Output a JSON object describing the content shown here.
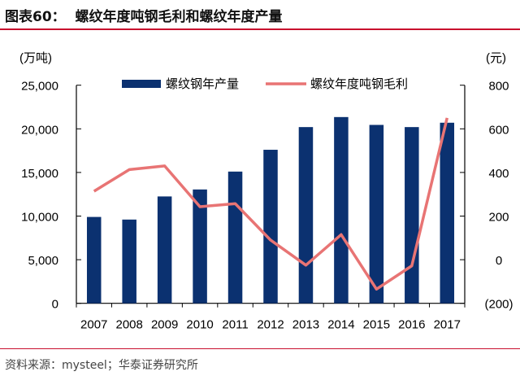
{
  "title": "图表60：  螺纹年度吨钢毛利和螺纹年度产量",
  "source": "资料来源：mysteel；华泰证券研究所",
  "colors": {
    "bar": "#0b3170",
    "line": "#e87474"
  },
  "chart_data": {
    "type": "bar+line",
    "categories": [
      "2007",
      "2008",
      "2009",
      "2010",
      "2011",
      "2012",
      "2013",
      "2014",
      "2015",
      "2016",
      "2017"
    ],
    "left_axis": {
      "unit": "(万吨)",
      "ylim": [
        0,
        25000
      ],
      "ticks": [
        0,
        5000,
        10000,
        15000,
        20000,
        25000
      ],
      "tick_labels": [
        "0",
        "5,000",
        "10,000",
        "15,000",
        "20,000",
        "25,000"
      ]
    },
    "right_axis": {
      "unit": "(元)",
      "ylim": [
        -200,
        800
      ],
      "ticks": [
        -200,
        0,
        200,
        400,
        600,
        800
      ],
      "tick_labels": [
        "(200)",
        "0",
        "200",
        "400",
        "600",
        "800"
      ]
    },
    "series": [
      {
        "name": "螺纹钢年产量",
        "type": "bar",
        "axis": "left",
        "values": [
          9900,
          9600,
          12250,
          13050,
          15100,
          17600,
          20200,
          21350,
          20450,
          20200,
          20700
        ]
      },
      {
        "name": "螺纹年度吨钢毛利",
        "type": "line",
        "axis": "right",
        "values": [
          314,
          413,
          430,
          243,
          257,
          90,
          -25,
          115,
          -135,
          -28,
          650
        ]
      }
    ],
    "legend": "top-center",
    "grid": false
  }
}
